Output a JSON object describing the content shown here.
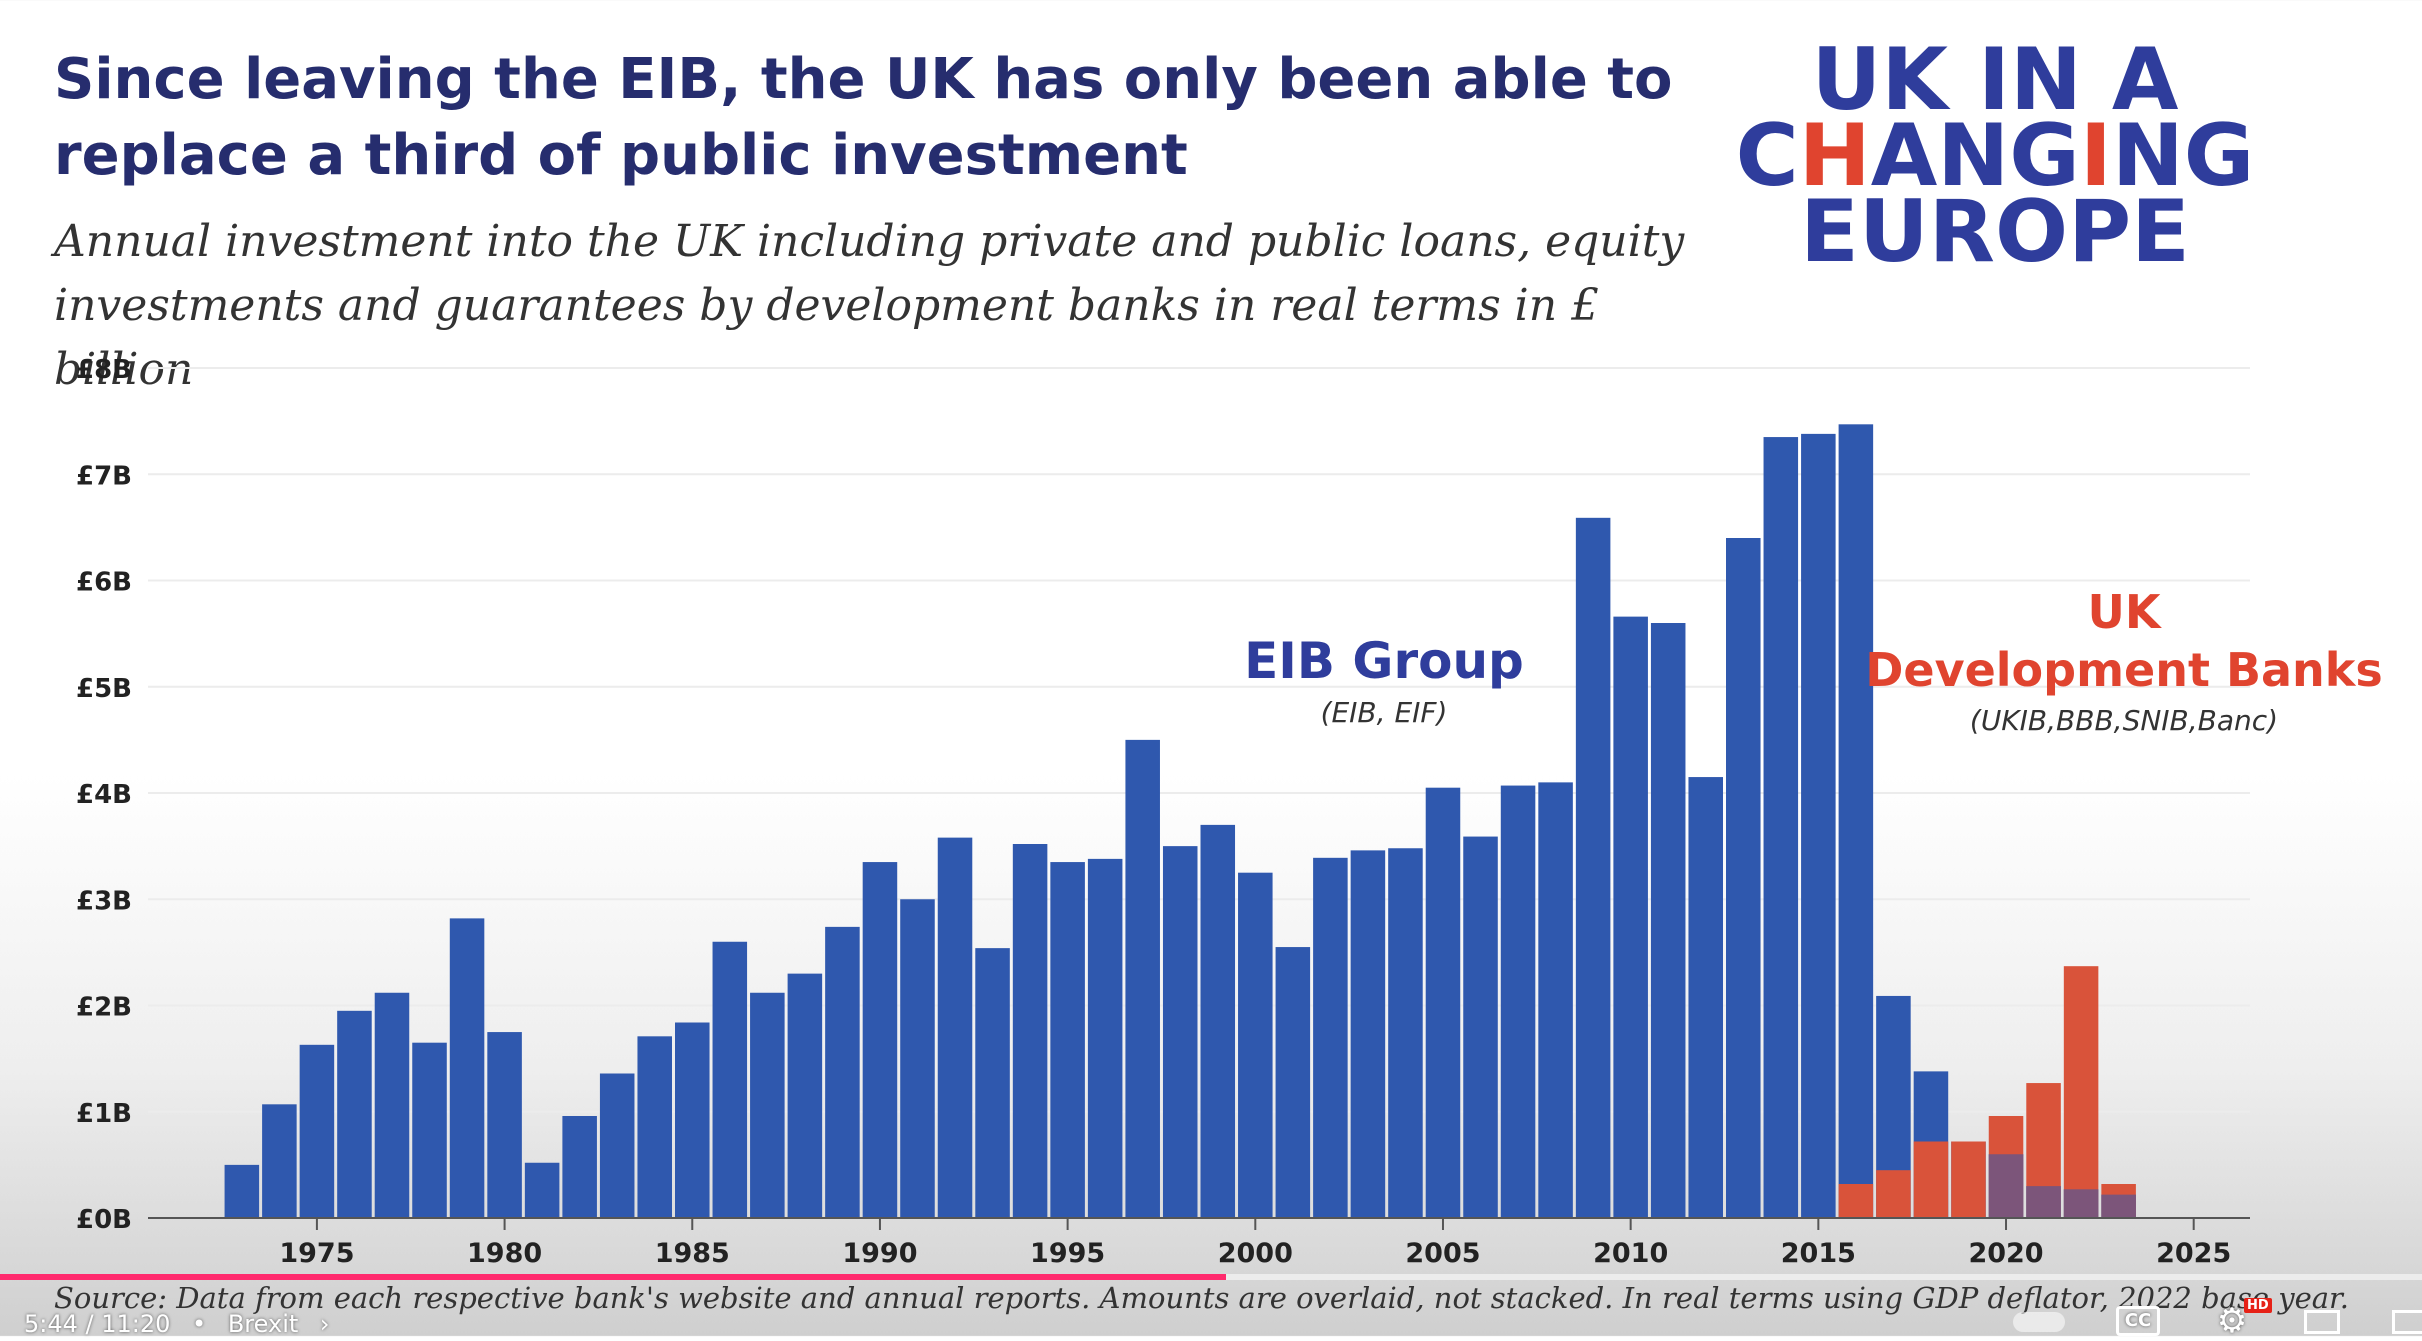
{
  "header": {
    "title": "Since leaving the EIB, the UK has only been able to replace a third of public investment",
    "subtitle": "Annual investment into the UK including private and public loans, equity investments and guarantees by development banks in real terms in £ billion"
  },
  "logo": {
    "line1": "UK IN A",
    "line2_pre": "C",
    "line2_h": "H",
    "line2_mid": "ANG",
    "line2_i": "I",
    "line2_post": "NG",
    "line3": "EUROPE"
  },
  "chart_data": {
    "type": "bar",
    "overlaid": true,
    "colors": {
      "eib": "#2f58ae",
      "uk": "#d9533a",
      "grid": "#ececec",
      "axis": "#555555"
    },
    "ylim": [
      0,
      8
    ],
    "yticks": [
      "£0B",
      "£1B",
      "£2B",
      "£3B",
      "£4B",
      "£5B",
      "£6B",
      "£7B",
      "£8B"
    ],
    "xlim": [
      1970.5,
      2026.5
    ],
    "xticks": [
      1975,
      1980,
      1985,
      1990,
      1995,
      2000,
      2005,
      2010,
      2015,
      2020,
      2025
    ],
    "series": [
      {
        "name": "EIB Group",
        "note": "(EIB, EIF)",
        "x": [
          1973,
          1974,
          1975,
          1976,
          1977,
          1978,
          1979,
          1980,
          1981,
          1982,
          1983,
          1984,
          1985,
          1986,
          1987,
          1988,
          1989,
          1990,
          1991,
          1992,
          1993,
          1994,
          1995,
          1996,
          1997,
          1998,
          1999,
          2000,
          2001,
          2002,
          2003,
          2004,
          2005,
          2006,
          2007,
          2008,
          2009,
          2010,
          2011,
          2012,
          2013,
          2014,
          2015,
          2016,
          2017,
          2018,
          2019,
          2020,
          2021,
          2022,
          2023
        ],
        "values": [
          0.5,
          1.07,
          1.63,
          1.95,
          2.12,
          1.65,
          2.82,
          1.75,
          0.52,
          0.96,
          1.36,
          1.71,
          1.84,
          2.6,
          2.12,
          2.3,
          2.74,
          3.35,
          3.0,
          3.58,
          2.54,
          3.52,
          3.35,
          3.38,
          4.5,
          3.5,
          3.7,
          3.25,
          2.55,
          3.39,
          3.46,
          3.48,
          4.05,
          3.59,
          4.07,
          4.1,
          6.59,
          5.66,
          5.6,
          4.15,
          6.4,
          7.35,
          7.38,
          7.47,
          2.09,
          1.38,
          0.72,
          0.6,
          0.3,
          0.27,
          0.22
        ]
      },
      {
        "name": "UK Development Banks",
        "name_line1": "UK",
        "name_line2": "Development Banks",
        "note": "(UKIB,BBB,SNIB,Banc)",
        "x": [
          2016,
          2017,
          2018,
          2019,
          2020,
          2021,
          2022,
          2023
        ],
        "values": [
          0.32,
          0.45,
          0.72,
          0.72,
          0.96,
          1.27,
          2.37,
          0.32
        ]
      }
    ]
  },
  "source": "Source: Data from each respective bank's website and annual reports. Amounts are overlaid, not stacked.  In real terms using GDP deflator, 2022 base year.",
  "player": {
    "time": "5:44 / 11:20",
    "separator": "•",
    "chapter": "Brexit",
    "chevron": "›",
    "progress_percent": 50.6,
    "progress_color": "#ff2a6d",
    "cc_label": "CC",
    "hd_label": "HD",
    "settings_glyph": "⚙"
  }
}
